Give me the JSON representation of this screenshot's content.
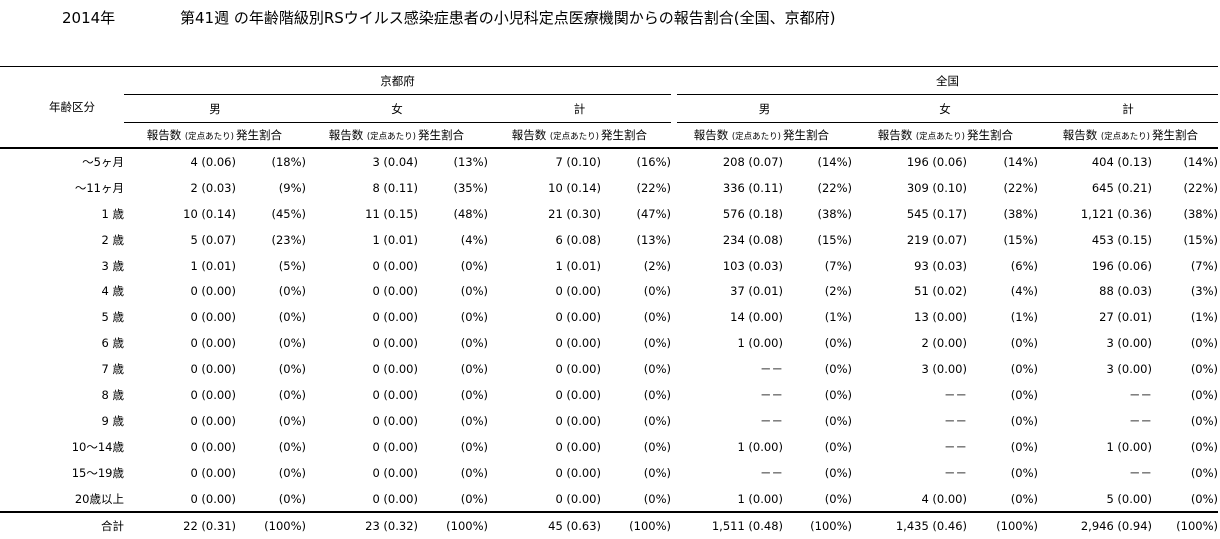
{
  "header": {
    "year": "2014年",
    "title": "第41週 の年齢階級別RSウイルス感染症患者の小児科定点医療機関からの報告割合(全国、京都府)"
  },
  "table": {
    "age_header": "年齢区分",
    "regions": [
      "京都府",
      "全国"
    ],
    "sexes": [
      "男",
      "女",
      "計"
    ],
    "sub_count": "報告数",
    "sub_per": "(定点あたり)",
    "sub_rate": "発生割合",
    "rows": [
      {
        "age": "～5ヶ月",
        "cells": [
          [
            "4 (0.06)",
            "(18%)"
          ],
          [
            "3 (0.04)",
            "(13%)"
          ],
          [
            "7 (0.10)",
            "(16%)"
          ],
          [
            "208 (0.07)",
            "(14%)"
          ],
          [
            "196 (0.06)",
            "(14%)"
          ],
          [
            "404 (0.13)",
            "(14%)"
          ]
        ]
      },
      {
        "age": "～11ヶ月",
        "cells": [
          [
            "2 (0.03)",
            "(9%)"
          ],
          [
            "8 (0.11)",
            "(35%)"
          ],
          [
            "10 (0.14)",
            "(22%)"
          ],
          [
            "336 (0.11)",
            "(22%)"
          ],
          [
            "309 (0.10)",
            "(22%)"
          ],
          [
            "645 (0.21)",
            "(22%)"
          ]
        ]
      },
      {
        "age": "1 歳",
        "cells": [
          [
            "10 (0.14)",
            "(45%)"
          ],
          [
            "11 (0.15)",
            "(48%)"
          ],
          [
            "21 (0.30)",
            "(47%)"
          ],
          [
            "576 (0.18)",
            "(38%)"
          ],
          [
            "545 (0.17)",
            "(38%)"
          ],
          [
            "1,121 (0.36)",
            "(38%)"
          ]
        ]
      },
      {
        "age": "2 歳",
        "cells": [
          [
            "5 (0.07)",
            "(23%)"
          ],
          [
            "1 (0.01)",
            "(4%)"
          ],
          [
            "6 (0.08)",
            "(13%)"
          ],
          [
            "234 (0.08)",
            "(15%)"
          ],
          [
            "219 (0.07)",
            "(15%)"
          ],
          [
            "453 (0.15)",
            "(15%)"
          ]
        ]
      },
      {
        "age": "3 歳",
        "cells": [
          [
            "1 (0.01)",
            "(5%)"
          ],
          [
            "0 (0.00)",
            "(0%)"
          ],
          [
            "1 (0.01)",
            "(2%)"
          ],
          [
            "103 (0.03)",
            "(7%)"
          ],
          [
            "93 (0.03)",
            "(6%)"
          ],
          [
            "196 (0.06)",
            "(7%)"
          ]
        ]
      },
      {
        "age": "4 歳",
        "cells": [
          [
            "0 (0.00)",
            "(0%)"
          ],
          [
            "0 (0.00)",
            "(0%)"
          ],
          [
            "0 (0.00)",
            "(0%)"
          ],
          [
            "37 (0.01)",
            "(2%)"
          ],
          [
            "51 (0.02)",
            "(4%)"
          ],
          [
            "88 (0.03)",
            "(3%)"
          ]
        ]
      },
      {
        "age": "5 歳",
        "cells": [
          [
            "0 (0.00)",
            "(0%)"
          ],
          [
            "0 (0.00)",
            "(0%)"
          ],
          [
            "0 (0.00)",
            "(0%)"
          ],
          [
            "14 (0.00)",
            "(1%)"
          ],
          [
            "13 (0.00)",
            "(1%)"
          ],
          [
            "27 (0.01)",
            "(1%)"
          ]
        ]
      },
      {
        "age": "6 歳",
        "cells": [
          [
            "0 (0.00)",
            "(0%)"
          ],
          [
            "0 (0.00)",
            "(0%)"
          ],
          [
            "0 (0.00)",
            "(0%)"
          ],
          [
            "1 (0.00)",
            "(0%)"
          ],
          [
            "2 (0.00)",
            "(0%)"
          ],
          [
            "3 (0.00)",
            "(0%)"
          ]
        ]
      },
      {
        "age": "7 歳",
        "cells": [
          [
            "0 (0.00)",
            "(0%)"
          ],
          [
            "0 (0.00)",
            "(0%)"
          ],
          [
            "0 (0.00)",
            "(0%)"
          ],
          [
            "－－",
            "(0%)"
          ],
          [
            "3 (0.00)",
            "(0%)"
          ],
          [
            "3 (0.00)",
            "(0%)"
          ]
        ]
      },
      {
        "age": "8 歳",
        "cells": [
          [
            "0 (0.00)",
            "(0%)"
          ],
          [
            "0 (0.00)",
            "(0%)"
          ],
          [
            "0 (0.00)",
            "(0%)"
          ],
          [
            "－－",
            "(0%)"
          ],
          [
            "－－",
            "(0%)"
          ],
          [
            "－－",
            "(0%)"
          ]
        ]
      },
      {
        "age": "9 歳",
        "cells": [
          [
            "0 (0.00)",
            "(0%)"
          ],
          [
            "0 (0.00)",
            "(0%)"
          ],
          [
            "0 (0.00)",
            "(0%)"
          ],
          [
            "－－",
            "(0%)"
          ],
          [
            "－－",
            "(0%)"
          ],
          [
            "－－",
            "(0%)"
          ]
        ]
      },
      {
        "age": "10～14歳",
        "cells": [
          [
            "0 (0.00)",
            "(0%)"
          ],
          [
            "0 (0.00)",
            "(0%)"
          ],
          [
            "0 (0.00)",
            "(0%)"
          ],
          [
            "1 (0.00)",
            "(0%)"
          ],
          [
            "－－",
            "(0%)"
          ],
          [
            "1 (0.00)",
            "(0%)"
          ]
        ]
      },
      {
        "age": "15～19歳",
        "cells": [
          [
            "0 (0.00)",
            "(0%)"
          ],
          [
            "0 (0.00)",
            "(0%)"
          ],
          [
            "0 (0.00)",
            "(0%)"
          ],
          [
            "－－",
            "(0%)"
          ],
          [
            "－－",
            "(0%)"
          ],
          [
            "－－",
            "(0%)"
          ]
        ]
      },
      {
        "age": "20歳以上",
        "cells": [
          [
            "0 (0.00)",
            "(0%)"
          ],
          [
            "0 (0.00)",
            "(0%)"
          ],
          [
            "0 (0.00)",
            "(0%)"
          ],
          [
            "1 (0.00)",
            "(0%)"
          ],
          [
            "4 (0.00)",
            "(0%)"
          ],
          [
            "5 (0.00)",
            "(0%)"
          ]
        ]
      }
    ],
    "total": {
      "age": "合計",
      "cells": [
        [
          "22 (0.31)",
          "(100%)"
        ],
        [
          "23 (0.32)",
          "(100%)"
        ],
        [
          "45 (0.63)",
          "(100%)"
        ],
        [
          "1,511 (0.48)",
          "(100%)"
        ],
        [
          "1,435 (0.46)",
          "(100%)"
        ],
        [
          "2,946 (0.94)",
          "(100%)"
        ]
      ]
    }
  }
}
